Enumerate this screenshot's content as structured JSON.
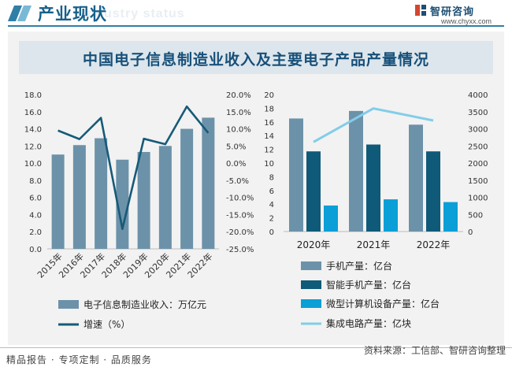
{
  "header": {
    "title": "产业现状",
    "watermark": "Industry status"
  },
  "brand": {
    "name": "智研咨询",
    "url": "www.chyxx.com"
  },
  "chart_title": "中国电子信息制造业收入及主要电子产品产量情况",
  "footer": {
    "left": "精品报告 · 专项定制 · 品质服务",
    "source": "资料来源：工信部、智研咨询整理"
  },
  "colors": {
    "bar1": "#6c92a9",
    "line1": "#175a78",
    "bar_phone": "#6c92a9",
    "bar_smart": "#0f5a78",
    "bar_pc": "#0a9fd6",
    "line_ic": "#82cde8"
  },
  "chart_data": [
    {
      "type": "bar",
      "categories": [
        "2015年",
        "2016年",
        "2017年",
        "2018年",
        "2019年",
        "2020年",
        "2021年",
        "2022年"
      ],
      "series": [
        {
          "name": "电子信息制造业收入：万亿元",
          "type": "bar",
          "axis": "left",
          "values": [
            11.0,
            12.1,
            12.9,
            10.4,
            11.3,
            12.0,
            14.0,
            15.3
          ]
        },
        {
          "name": "增速（%）",
          "type": "line",
          "axis": "right",
          "values": [
            9.5,
            7.0,
            13.2,
            -19.2,
            7.1,
            5.5,
            16.5,
            8.8
          ]
        }
      ],
      "left_axis": {
        "ticks": [
          "0.0",
          "2.0",
          "4.0",
          "6.0",
          "8.0",
          "10.0",
          "12.0",
          "14.0",
          "16.0",
          "18.0"
        ],
        "ylim": [
          0,
          18
        ]
      },
      "right_axis": {
        "ticks": [
          "-25.0%",
          "-20.0%",
          "-15.0%",
          "-10.0%",
          "-5.0%",
          "0.0%",
          "5.0%",
          "10.0%",
          "15.0%",
          "20.0%"
        ],
        "ylim": [
          -25,
          20
        ]
      }
    },
    {
      "type": "bar",
      "categories": [
        "2020年",
        "2021年",
        "2022年"
      ],
      "series": [
        {
          "name": "手机产量：亿台",
          "type": "bar",
          "axis": "left",
          "values": [
            16.5,
            17.6,
            15.6
          ]
        },
        {
          "name": "智能手机产量：亿台",
          "type": "bar",
          "axis": "left",
          "values": [
            11.7,
            12.7,
            11.7
          ]
        },
        {
          "name": "微型计算机设备产量：亿台",
          "type": "bar",
          "axis": "left",
          "values": [
            3.8,
            4.7,
            4.3
          ]
        },
        {
          "name": "集成电路产量：亿块",
          "type": "line",
          "axis": "right",
          "values": [
            2614,
            3594,
            3242
          ]
        }
      ],
      "left_axis": {
        "ticks": [
          "0",
          "2",
          "4",
          "6",
          "8",
          "10",
          "12",
          "14",
          "16",
          "18",
          "20"
        ],
        "ylim": [
          0,
          20
        ]
      },
      "right_axis": {
        "ticks": [
          "0",
          "500",
          "1000",
          "1500",
          "2000",
          "2500",
          "3000",
          "3500",
          "4000"
        ],
        "ylim": [
          0,
          4000
        ]
      }
    }
  ]
}
